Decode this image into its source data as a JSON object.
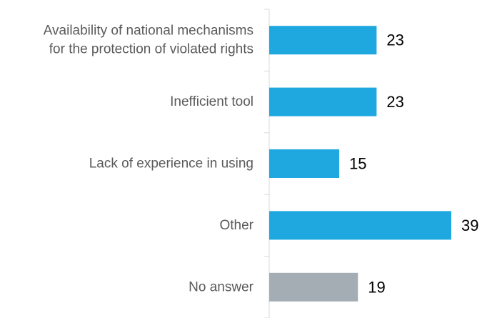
{
  "chart_data": {
    "type": "bar",
    "orientation": "horizontal",
    "categories": [
      [
        "Availability of national mechanisms",
        "for the protection of violated rights"
      ],
      [
        "Inefficient tool"
      ],
      [
        "Lack of experience in using"
      ],
      [
        "Other"
      ],
      [
        "No answer"
      ]
    ],
    "values": [
      23,
      23,
      15,
      39,
      19
    ],
    "data_labels": [
      "23",
      "23",
      "15",
      "39",
      "19"
    ],
    "colors": [
      "#1FA8E0",
      "#1FA8E0",
      "#1FA8E0",
      "#1FA8E0",
      "#A5ADB4"
    ],
    "xlim": [
      0,
      40
    ],
    "grid": false,
    "legend": "none",
    "title": "",
    "xlabel": "",
    "ylabel": ""
  }
}
